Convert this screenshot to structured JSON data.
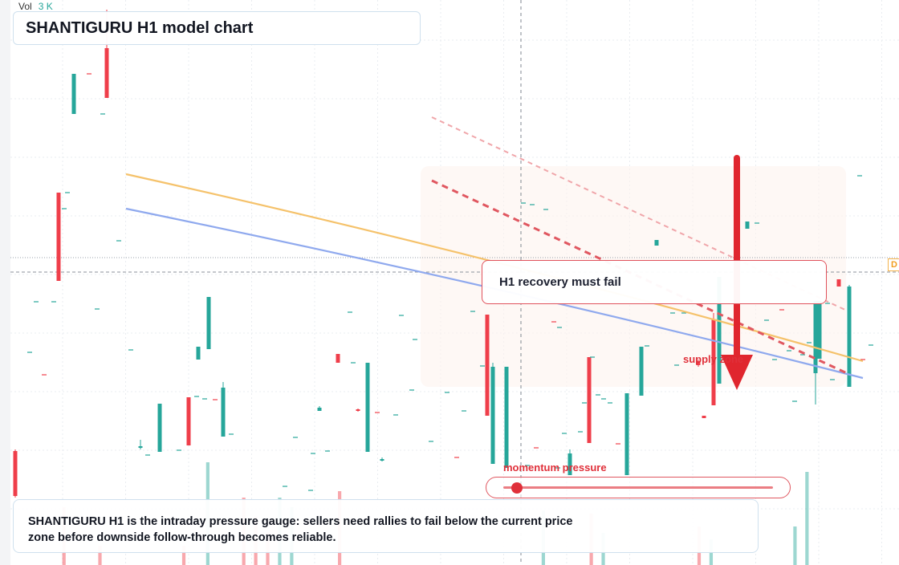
{
  "header": {
    "vol_label": "Vol",
    "vol_value": "3 K",
    "title": "SHANTIGURU H1 model chart"
  },
  "annotations": {
    "callout": "H1 recovery must fail",
    "supply_label": "supply zone",
    "momentum_label": "momentum pressure",
    "momentum_level": 0.05,
    "note": "SHANTIGURU H1 is the intraday pressure gauge: sellers need rallies to fail below the current price zone before downside follow-through becomes reliable.",
    "level_tag": "D"
  },
  "colors": {
    "bull": "#26a69a",
    "bear": "#ef3e4a",
    "moving_average_fast": "#f5c26b",
    "moving_average_slow": "#8fa9ee",
    "resistance": "#e05760",
    "arrow": "#e0262e"
  },
  "chart_data": {
    "type": "candlestick",
    "bars": 71,
    "volume_bars": [
      {
        "bar": 4,
        "volume": 1.8,
        "dir": "down"
      },
      {
        "bar": 7,
        "volume": 0.6,
        "dir": "down"
      },
      {
        "bar": 14,
        "volume": 0.6,
        "dir": "down"
      },
      {
        "bar": 16,
        "volume": 3.2,
        "dir": "up"
      },
      {
        "bar": 19,
        "volume": 2.1,
        "dir": "down"
      },
      {
        "bar": 20,
        "volume": 1.5,
        "dir": "down"
      },
      {
        "bar": 21,
        "volume": 1.0,
        "dir": "down"
      },
      {
        "bar": 22,
        "volume": 2.1,
        "dir": "up"
      },
      {
        "bar": 23,
        "volume": 1.8,
        "dir": "up"
      },
      {
        "bar": 27,
        "volume": 2.3,
        "dir": "down"
      },
      {
        "bar": 44,
        "volume": 1.7,
        "dir": "up"
      },
      {
        "bar": 48,
        "volume": 1.6,
        "dir": "down"
      },
      {
        "bar": 49,
        "volume": 1.0,
        "dir": "up"
      },
      {
        "bar": 57,
        "volume": 1.2,
        "dir": "down"
      },
      {
        "bar": 58,
        "volume": 0.8,
        "dir": "up"
      },
      {
        "bar": 65,
        "volume": 1.2,
        "dir": "up"
      },
      {
        "bar": 66,
        "volume": 2.9,
        "dir": "up"
      }
    ]
  }
}
